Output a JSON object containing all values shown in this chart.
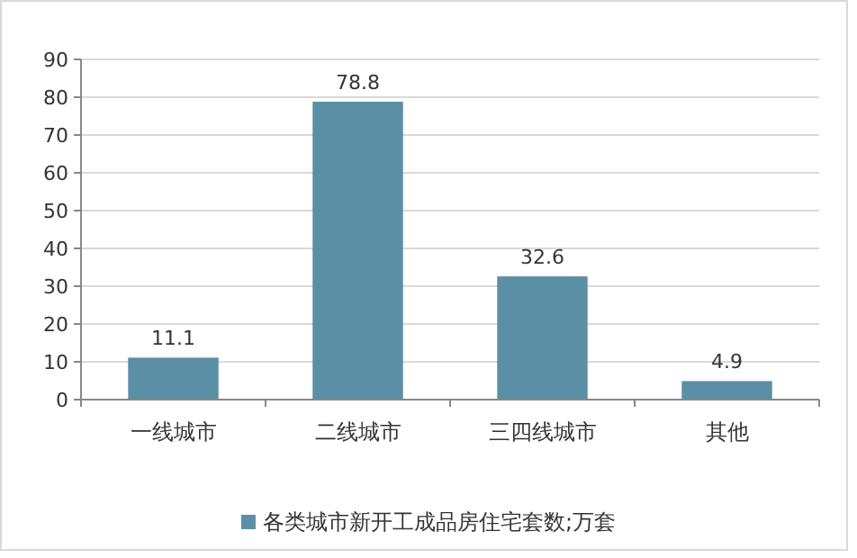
{
  "chart_data": {
    "type": "bar",
    "categories": [
      "一线城市",
      "二线城市",
      "三四线城市",
      "其他"
    ],
    "series": [
      {
        "name": "各类城市新开工成品房住宅套数;万套",
        "color": "#5b8fa5",
        "values": [
          11.1,
          78.8,
          32.6,
          4.9
        ]
      }
    ],
    "ylim": [
      0,
      90
    ],
    "yticks": [
      0,
      10,
      20,
      30,
      40,
      50,
      60,
      70,
      80,
      90
    ],
    "grid": "y",
    "data_labels": true,
    "legend": "bottom"
  }
}
